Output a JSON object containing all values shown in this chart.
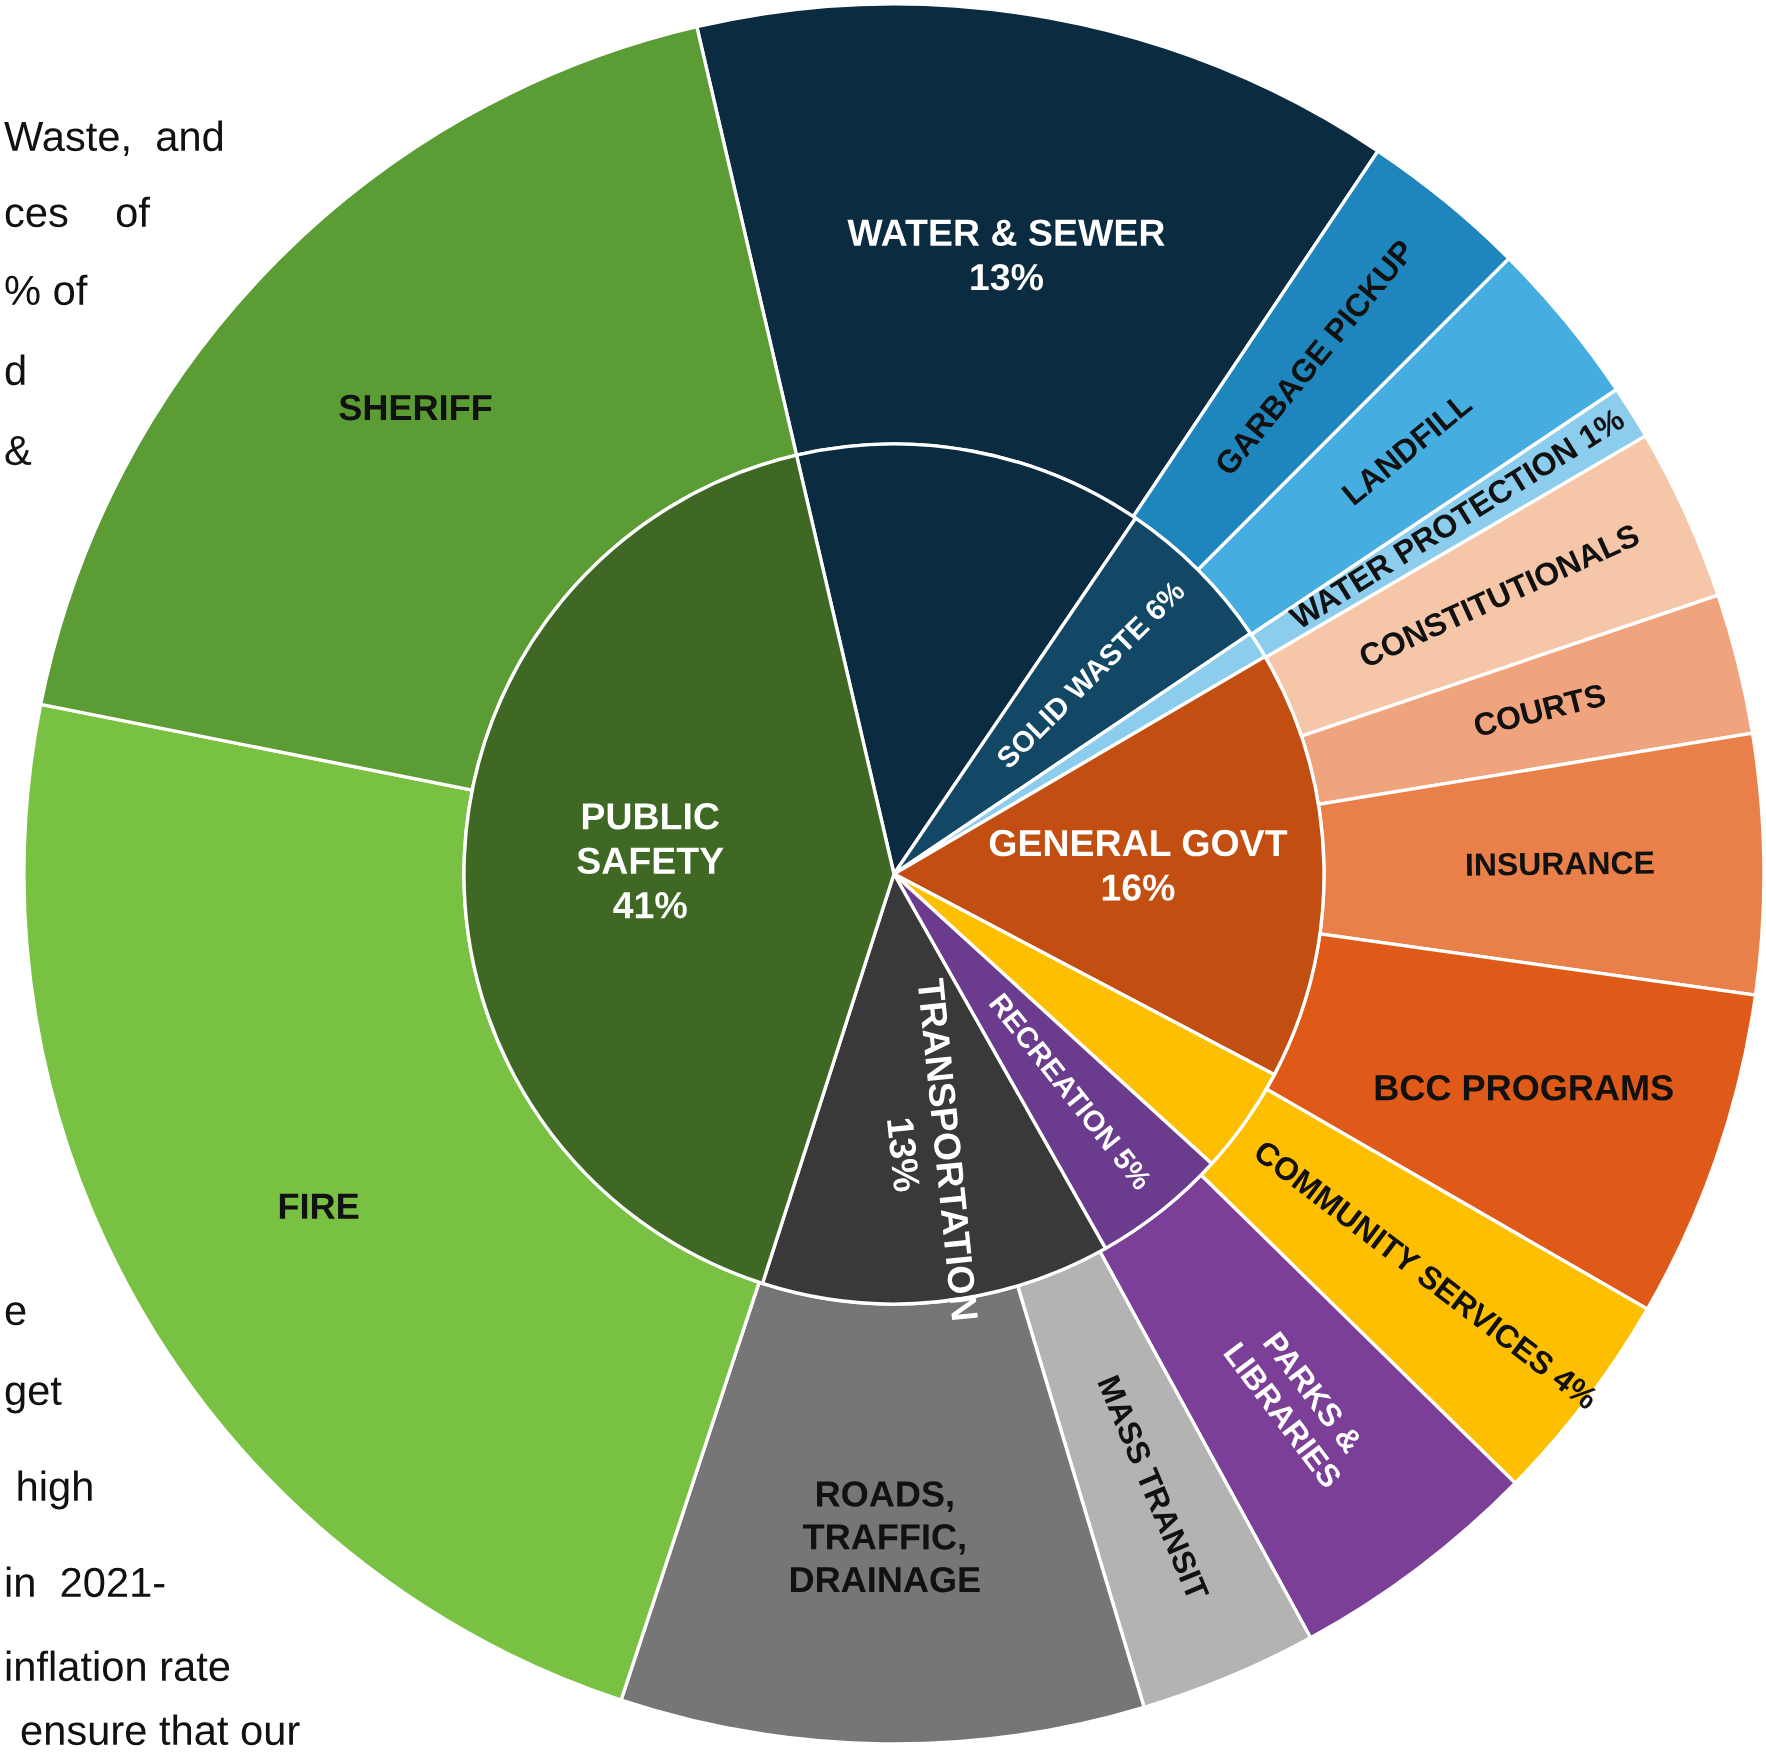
{
  "chart_data": {
    "type": "donut",
    "categories": [
      "WATER & SEWER",
      "GARBAGE PICKUP",
      "LANDFILL",
      "WATER PROTECTION",
      "CONSTITUTIONALS",
      "COURTS",
      "INSURANCE",
      "BCC PROGRAMS",
      "COMMUNITY SERVICES",
      "PARKS &\nLIBRARIES",
      "MASS TRANSIT",
      "ROADS,\nTRAFFIC,\nDRAINAGE",
      "FIRE",
      "SHERIFF"
    ],
    "series": [
      {
        "values": [
          13,
          3.1,
          3.1,
          1,
          3.2,
          2.6,
          4.8,
          6.1,
          4,
          4.7,
          3.3,
          9.7,
          23.0,
          18.2
        ],
        "value_labels": [
          "13%",
          null,
          null,
          "1%",
          null,
          null,
          null,
          null,
          "4%",
          null,
          null,
          null,
          null,
          null
        ],
        "colors": [
          "#0b2b40",
          "#1f86bd",
          "#46ade0",
          "#8ccdee",
          "#f6c6a9",
          "#f0a47e",
          "#e9804a",
          "#df5a18",
          "#fdbf00",
          "#7b3f98",
          "#b3b3b3",
          "#767676",
          "#79c142",
          "#5c9c34"
        ]
      },
      {
        "type": "pie",
        "values": [
          13,
          6,
          null,
          1,
          16,
          null,
          null,
          null,
          4,
          5,
          13,
          null,
          41,
          null
        ],
        "value_labels": [
          null,
          "SOLID WASTE 6%",
          null,
          null,
          "GENERAL GOVT\n16%",
          null,
          null,
          null,
          null,
          "RECREATION 5%",
          "TRANSPORTATION\n13%",
          null,
          "PUBLIC\nSAFETY\n41%",
          null
        ],
        "colors": [
          "#0b2b40",
          "#124866",
          null,
          "#8ccdee",
          "#c24e12",
          null,
          null,
          null,
          "#fdbf00",
          "#6b3b8e",
          "#393939",
          null,
          "#3e6823",
          null
        ]
      }
    ],
    "annotations": [
      "Waste,  and",
      "ces    of",
      "% of",
      "d",
      "&",
      "e",
      "get",
      " high",
      "in  2021-",
      "inflation rate",
      "ensure that our"
    ]
  }
}
